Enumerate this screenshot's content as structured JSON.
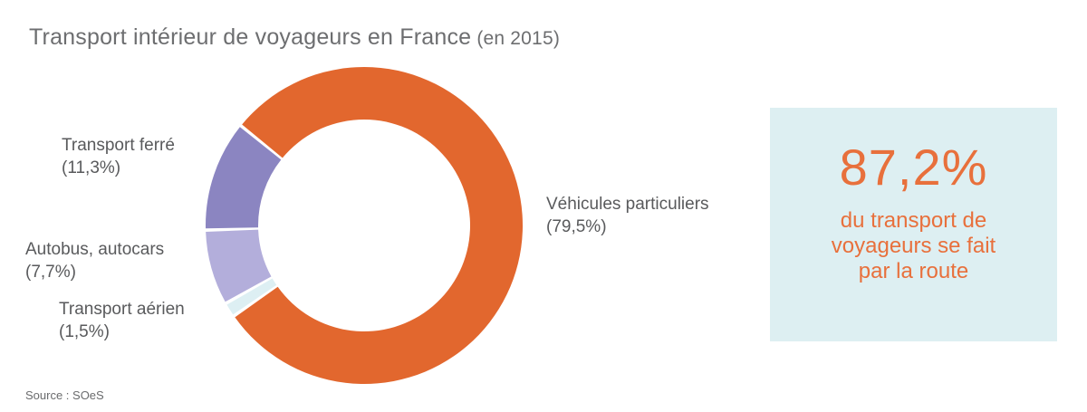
{
  "title": {
    "main": "Transport intérieur de voyageurs en France",
    "suffix": " (en 2015)"
  },
  "source": "Source : SOeS",
  "chart_data": {
    "type": "pie",
    "donut": true,
    "title": "Transport intérieur de voyageurs en France (en 2015)",
    "start_angle_deg": 309,
    "gap_deg": 0.6,
    "legend_position": "labels-around-chart",
    "segments": [
      {
        "id": "vehicules-particuliers",
        "label": "Véhicules particuliers",
        "value": 79.5,
        "display_value": "(79,5%)",
        "color": "#e2672e"
      },
      {
        "id": "transport-aerien",
        "label": "Transport aérien",
        "value": 1.5,
        "display_value": "(1,5%)",
        "color": "#ddeff3"
      },
      {
        "id": "autobus-autocars",
        "label": "Autobus, autocars",
        "value": 7.7,
        "display_value": "(7,7%)",
        "color": "#b3aedb"
      },
      {
        "id": "transport-ferre",
        "label": "Transport ferré",
        "value": 11.3,
        "display_value": "(11,3%)",
        "color": "#8b85c1"
      }
    ]
  },
  "labels": {
    "ferre": {
      "lines": [
        "Transport ferré",
        "(11,3%)"
      ]
    },
    "autobus": {
      "lines": [
        "Autobus, autocars",
        "(7,7%)"
      ]
    },
    "aerien": {
      "lines": [
        "Transport aérien",
        "(1,5%)"
      ]
    },
    "vehicules": {
      "lines": [
        "Véhicules particuliers",
        "(79,5%)"
      ]
    }
  },
  "callout": {
    "headline": "87,2%",
    "body_lines": [
      "du transport de",
      "voyageurs se fait",
      "par la route"
    ],
    "background_color": "#ddeff2",
    "text_color": "#e8703c"
  },
  "colors": {
    "accent_orange": "#e2672e",
    "title_gray": "#6d6e70",
    "label_gray": "#595a5c"
  }
}
